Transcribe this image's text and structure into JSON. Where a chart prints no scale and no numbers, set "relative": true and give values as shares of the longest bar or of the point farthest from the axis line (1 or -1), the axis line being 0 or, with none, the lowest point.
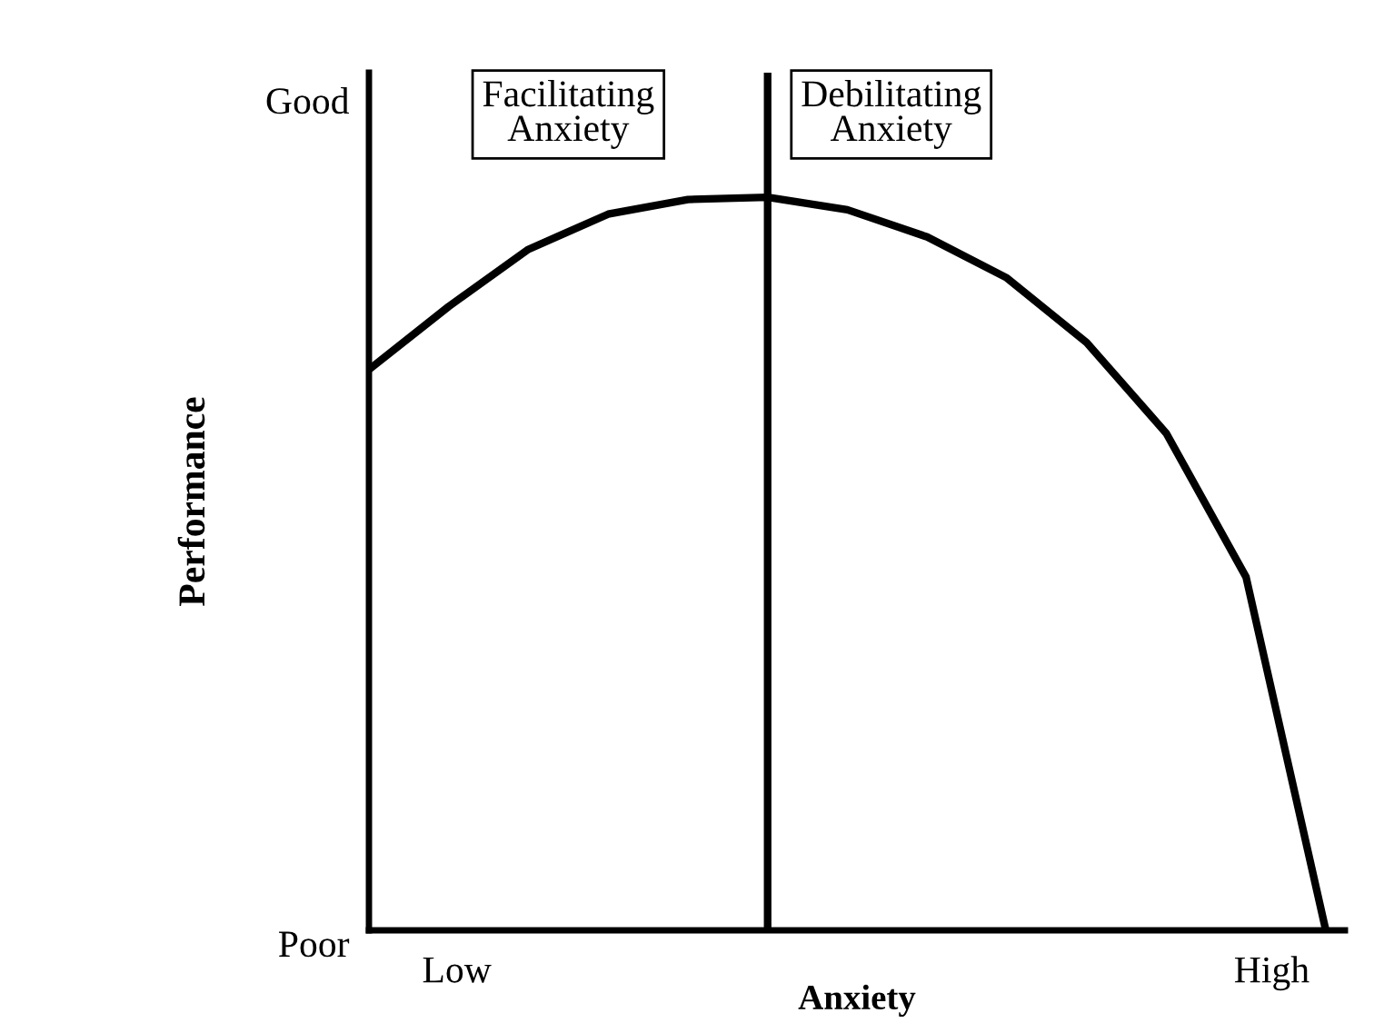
{
  "chart_data": {
    "type": "line",
    "relative": true,
    "xlabel": "Anxiety",
    "ylabel": "Performance",
    "categories": [
      null,
      null,
      null,
      null,
      null,
      null,
      null,
      null,
      null,
      null,
      null,
      null,
      null
    ],
    "series": [
      {
        "color": "#000000",
        "values": [
          0.765,
          0.851,
          0.929,
          0.977,
          0.997,
          1,
          0.983,
          0.946,
          0.89,
          0.802,
          0.678,
          0.482,
          0
        ]
      }
    ],
    "annotations": [
      "Good",
      "Poor",
      "Low",
      "High",
      "Facilitating\nAnxiety",
      "Debilitating\nAnxiety"
    ],
    "grid": false,
    "legend": false,
    "marker": "none",
    "line_style": "solid"
  }
}
